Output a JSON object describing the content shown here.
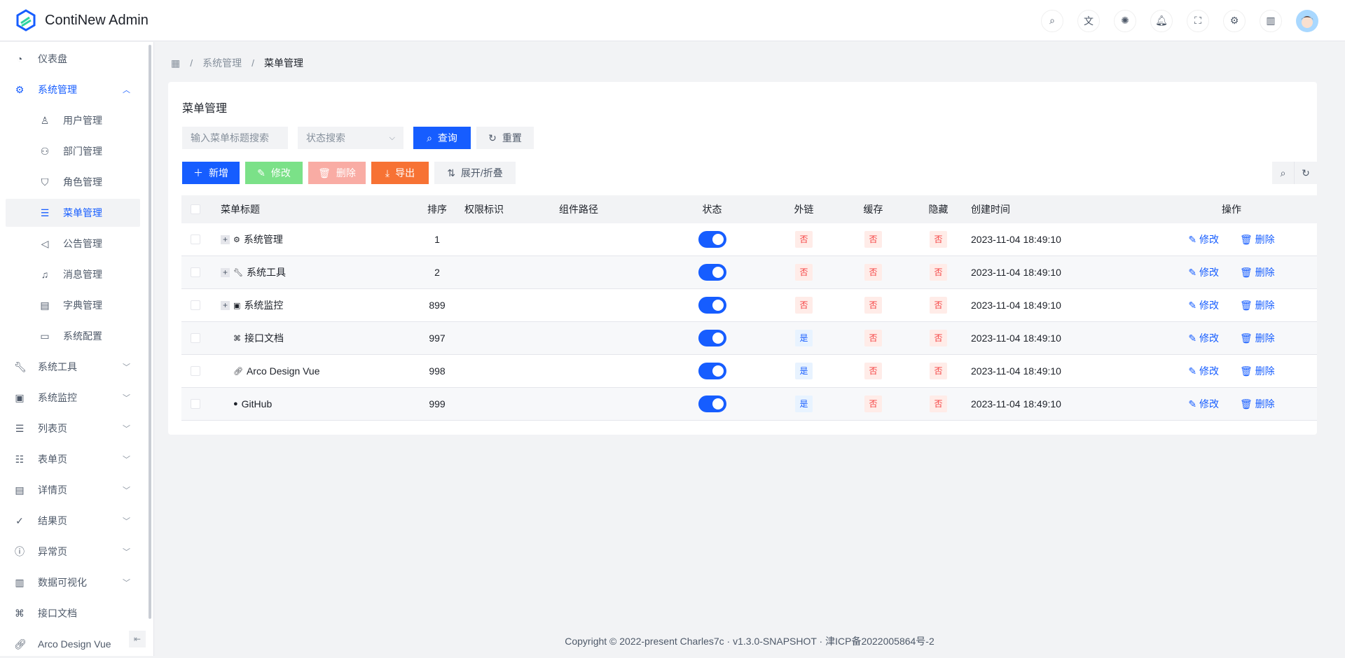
{
  "header": {
    "app_title": "ContiNew Admin",
    "icons": [
      "search-icon",
      "translate-icon",
      "theme-icon",
      "bell-icon",
      "fullscreen-icon",
      "settings-icon",
      "docs-icon"
    ]
  },
  "sidebar": {
    "items": [
      {
        "label": "仪表盘",
        "icon": "dashboard-icon"
      },
      {
        "label": "系统管理",
        "icon": "gear-icon",
        "open": true
      },
      {
        "label": "用户管理",
        "icon": "user-icon",
        "sub": true
      },
      {
        "label": "部门管理",
        "icon": "users-icon",
        "sub": true
      },
      {
        "label": "角色管理",
        "icon": "shield-icon",
        "sub": true
      },
      {
        "label": "菜单管理",
        "icon": "menu-icon",
        "sub": true,
        "active": true
      },
      {
        "label": "公告管理",
        "icon": "megaphone-icon",
        "sub": true
      },
      {
        "label": "消息管理",
        "icon": "bell-icon",
        "sub": true
      },
      {
        "label": "字典管理",
        "icon": "dictionary-icon",
        "sub": true
      },
      {
        "label": "系统配置",
        "icon": "desktop-icon",
        "sub": true
      },
      {
        "label": "系统工具",
        "icon": "wrench-icon"
      },
      {
        "label": "系统监控",
        "icon": "monitor-icon"
      },
      {
        "label": "列表页",
        "icon": "list-icon"
      },
      {
        "label": "表单页",
        "icon": "checklist-icon"
      },
      {
        "label": "详情页",
        "icon": "file-icon"
      },
      {
        "label": "结果页",
        "icon": "check-circle-icon"
      },
      {
        "label": "异常页",
        "icon": "exclamation-circle-icon"
      },
      {
        "label": "数据可视化",
        "icon": "bar-chart-icon"
      },
      {
        "label": "接口文档",
        "icon": "code-icon"
      },
      {
        "label": "Arco Design Vue",
        "icon": "link-icon"
      }
    ]
  },
  "breadcrumb": {
    "parent": "系统管理",
    "current": "菜单管理"
  },
  "card": {
    "title": "菜单管理"
  },
  "search": {
    "title_placeholder": "输入菜单标题搜索",
    "status_placeholder": "状态搜索",
    "query": "查询",
    "reset": "重置"
  },
  "toolbar": {
    "add": "新增",
    "edit": "修改",
    "delete": "删除",
    "export": "导出",
    "expand": "展开/折叠"
  },
  "colors": {
    "primary": "#165dff",
    "success": "#7be188",
    "danger_light": "#f9aca4",
    "warning": "#f77234"
  },
  "table": {
    "columns": [
      "菜单标题",
      "排序",
      "权限标识",
      "组件路径",
      "状态",
      "外链",
      "缓存",
      "隐藏",
      "创建时间",
      "操作"
    ],
    "rows": [
      {
        "title": "系统管理",
        "icon": "gear-icon",
        "expandable": true,
        "sort": "1",
        "status": true,
        "external": "否",
        "cache": "否",
        "hidden": "否",
        "created": "2023-11-04 18:49:10"
      },
      {
        "title": "系统工具",
        "icon": "wrench-icon",
        "expandable": true,
        "sort": "2",
        "status": true,
        "external": "否",
        "cache": "否",
        "hidden": "否",
        "created": "2023-11-04 18:49:10"
      },
      {
        "title": "系统监控",
        "icon": "monitor-icon",
        "expandable": true,
        "sort": "899",
        "status": true,
        "external": "否",
        "cache": "否",
        "hidden": "否",
        "created": "2023-11-04 18:49:10"
      },
      {
        "title": "接口文档",
        "icon": "code-icon",
        "expandable": false,
        "sort": "997",
        "status": true,
        "external": "是",
        "cache": "否",
        "hidden": "否",
        "created": "2023-11-04 18:49:10"
      },
      {
        "title": "Arco Design Vue",
        "icon": "link-icon",
        "expandable": false,
        "sort": "998",
        "status": true,
        "external": "是",
        "cache": "否",
        "hidden": "否",
        "created": "2023-11-04 18:49:10"
      },
      {
        "title": "GitHub",
        "icon": "github-icon",
        "expandable": false,
        "sort": "999",
        "status": true,
        "external": "是",
        "cache": "否",
        "hidden": "否",
        "created": "2023-11-04 18:49:10"
      }
    ],
    "row_actions": {
      "edit": "修改",
      "delete": "删除"
    }
  },
  "footer": {
    "text": "Copyright © 2022-present Charles7c · v1.3.0-SNAPSHOT · 津ICP备2022005864号-2"
  }
}
